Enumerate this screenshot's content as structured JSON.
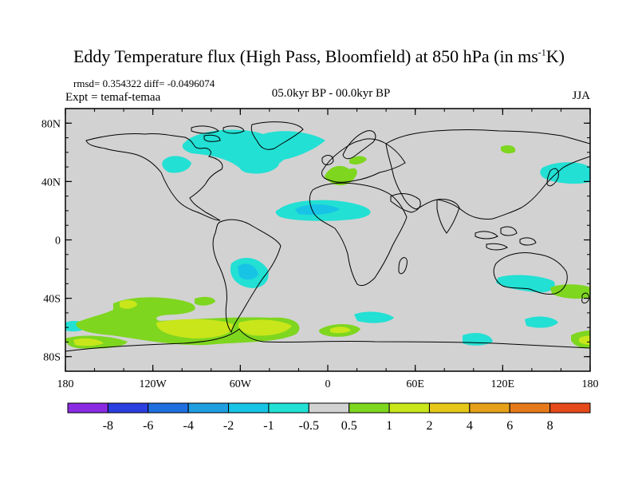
{
  "header": {
    "title_main": "Eddy Temperature flux (High Pass, Bloomfield) at 850 hPa (in ms",
    "title_sup": "-1",
    "title_end": "K)",
    "stats": "rmsd= 0.354322 diff= -0.0496074",
    "experiment": "Expt = temaf-temaa",
    "period": "05.0kyr BP - 00.0kyr BP",
    "season": "JJA"
  },
  "map": {
    "projection": "cylindrical-equidistant",
    "lon_range": [
      -180,
      180
    ],
    "lat_range": [
      -90,
      90
    ],
    "background_color": "#d2d2d2",
    "lat_labels": [
      {
        "lat": 80,
        "text": "80N"
      },
      {
        "lat": 40,
        "text": "40N"
      },
      {
        "lat": 0,
        "text": "0"
      },
      {
        "lat": -40,
        "text": "40S"
      },
      {
        "lat": -80,
        "text": "80S"
      }
    ],
    "lon_labels": [
      {
        "lon": -180,
        "text": "180"
      },
      {
        "lon": -120,
        "text": "120W"
      },
      {
        "lon": -60,
        "text": "60W"
      },
      {
        "lon": 0,
        "text": "0"
      },
      {
        "lon": 60,
        "text": "60E"
      },
      {
        "lon": 120,
        "text": "120E"
      },
      {
        "lon": 180,
        "text": "180"
      }
    ]
  },
  "colorbar": {
    "colors": [
      "#8a2be2",
      "#2b3fe0",
      "#1f6fe0",
      "#1f9ee0",
      "#18c4e6",
      "#22e0d4",
      "#d2d2d2",
      "#7ed61f",
      "#c8e61a",
      "#e6c81a",
      "#e6a01a",
      "#e67a1a",
      "#e64a1a"
    ],
    "labels": [
      "-8",
      "-6",
      "-4",
      "-2",
      "-1",
      "-0.5",
      "0.5",
      "1",
      "2",
      "4",
      "6",
      "8"
    ]
  }
}
